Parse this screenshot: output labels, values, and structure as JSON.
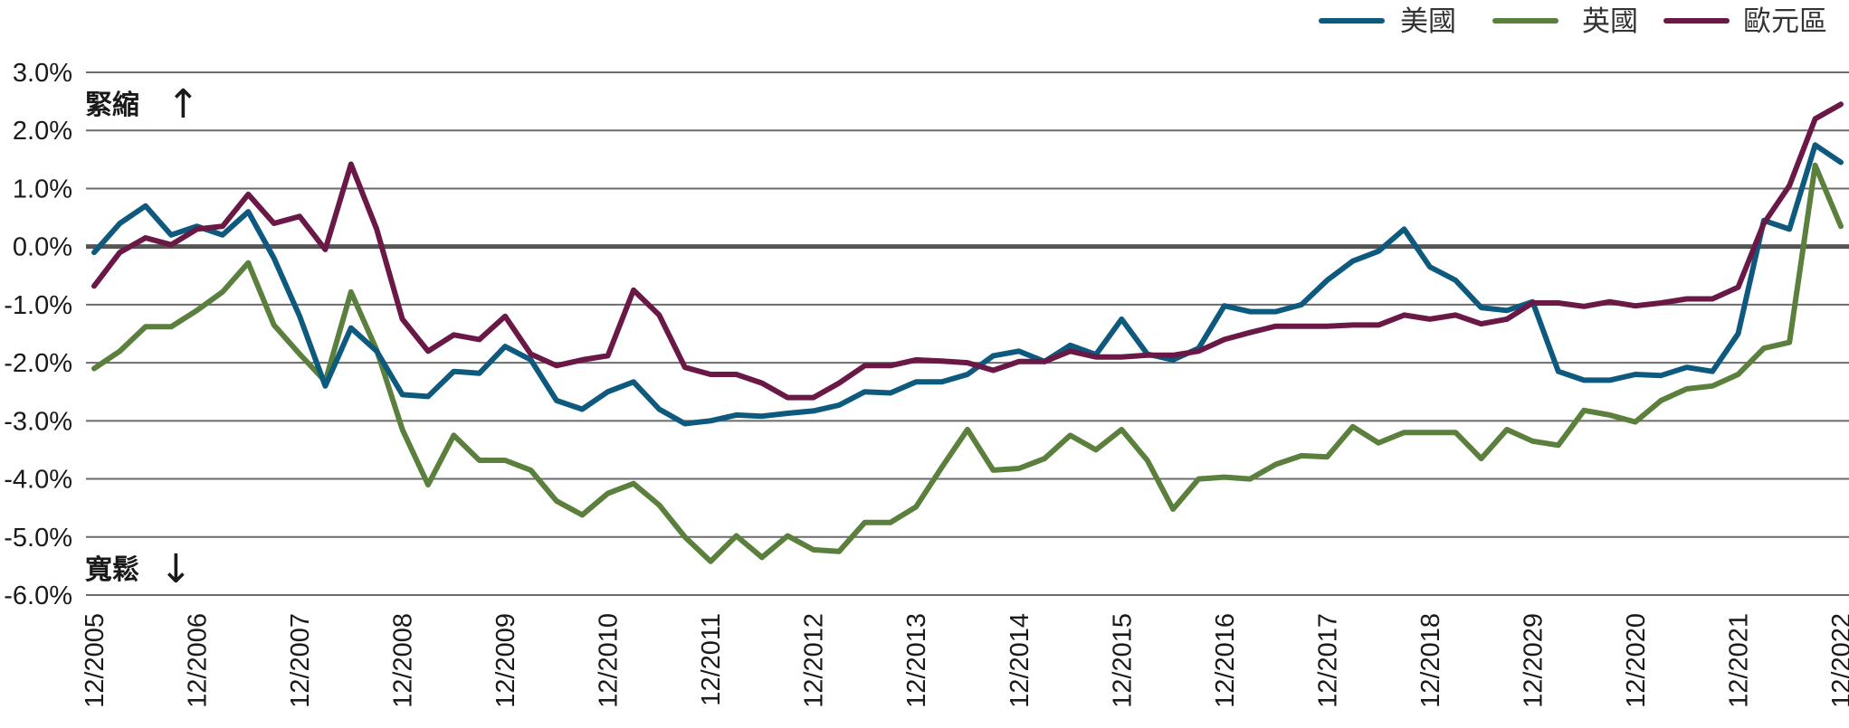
{
  "chart_data": {
    "type": "line",
    "title": "",
    "xlabel": "",
    "ylabel": "",
    "ylim": [
      -6.0,
      3.0
    ],
    "y_ticks": [
      "3.0%",
      "2.0%",
      "1.0%",
      "0.0%",
      "-1.0%",
      "-2.0%",
      "-3.0%",
      "-4.0%",
      "-5.0%",
      "-6.0%"
    ],
    "y_tick_values": [
      3,
      2,
      1,
      0,
      -1,
      -2,
      -3,
      -4,
      -5,
      -6
    ],
    "x_ticks": [
      "12/2005",
      "12/2006",
      "12/2007",
      "12/2008",
      "12/2009",
      "12/2010",
      "12/2011",
      "12/2012",
      "12/2013",
      "12/2014",
      "12/2015",
      "12/2016",
      "12/2017",
      "12/2018",
      "12/2029",
      "12/2020",
      "12/2021",
      "12/2022"
    ],
    "grid": true,
    "legend_position": "top-right",
    "annotations": {
      "tight": "緊縮",
      "tight_arrow": "↑",
      "loose": "寬鬆",
      "loose_arrow": "↓"
    },
    "series": [
      {
        "name": "美國",
        "color": "#0e5a7e",
        "values": [
          -0.1,
          0.4,
          0.7,
          0.2,
          0.35,
          0.2,
          0.6,
          -0.2,
          -1.2,
          -2.4,
          -1.4,
          -1.8,
          -2.55,
          -2.58,
          -2.15,
          -2.18,
          -1.72,
          -1.95,
          -2.65,
          -2.8,
          -2.5,
          -2.33,
          -2.8,
          -3.05,
          -3.0,
          -2.9,
          -2.92,
          -2.87,
          -2.83,
          -2.73,
          -2.5,
          -2.52,
          -2.33,
          -2.33,
          -2.2,
          -1.88,
          -1.8,
          -1.98,
          -1.7,
          -1.86,
          -1.25,
          -1.85,
          -1.95,
          -1.75,
          -1.02,
          -1.12,
          -1.12,
          -1.0,
          -0.58,
          -0.25,
          -0.08,
          0.3,
          -0.35,
          -0.58,
          -1.05,
          -1.1,
          -0.95,
          -2.15,
          -2.3,
          -2.3,
          -2.2,
          -2.22,
          -2.08,
          -2.15,
          -1.5,
          0.45,
          0.3,
          1.75,
          1.45
        ]
      },
      {
        "name": "英國",
        "color": "#5b7f3c",
        "values": [
          -2.1,
          -1.8,
          -1.38,
          -1.38,
          -1.1,
          -0.78,
          -0.28,
          -1.35,
          -1.85,
          -2.32,
          -0.78,
          -1.78,
          -3.15,
          -4.1,
          -3.25,
          -3.68,
          -3.68,
          -3.85,
          -4.38,
          -4.62,
          -4.25,
          -4.08,
          -4.45,
          -5.0,
          -5.42,
          -4.98,
          -5.35,
          -4.98,
          -5.22,
          -5.25,
          -4.75,
          -4.75,
          -4.48,
          -3.8,
          -3.15,
          -3.85,
          -3.82,
          -3.65,
          -3.25,
          -3.5,
          -3.15,
          -3.68,
          -4.52,
          -4.0,
          -3.97,
          -4.0,
          -3.75,
          -3.6,
          -3.62,
          -3.1,
          -3.38,
          -3.2,
          -3.2,
          -3.2,
          -3.65,
          -3.15,
          -3.35,
          -3.42,
          -2.82,
          -2.9,
          -3.02,
          -2.65,
          -2.45,
          -2.4,
          -2.2,
          -1.75,
          -1.65,
          1.4,
          0.35
        ]
      },
      {
        "name": "歐元區",
        "color": "#6a1846",
        "values": [
          -0.68,
          -0.1,
          0.15,
          0.03,
          0.3,
          0.35,
          0.9,
          0.4,
          0.52,
          -0.05,
          1.42,
          0.3,
          -1.25,
          -1.8,
          -1.52,
          -1.6,
          -1.2,
          -1.85,
          -2.05,
          -1.95,
          -1.88,
          -0.75,
          -1.18,
          -2.08,
          -2.2,
          -2.2,
          -2.35,
          -2.6,
          -2.6,
          -2.35,
          -2.05,
          -2.05,
          -1.95,
          -1.97,
          -2.0,
          -2.13,
          -1.98,
          -1.98,
          -1.8,
          -1.9,
          -1.9,
          -1.87,
          -1.87,
          -1.8,
          -1.6,
          -1.48,
          -1.37,
          -1.37,
          -1.37,
          -1.35,
          -1.35,
          -1.18,
          -1.25,
          -1.18,
          -1.33,
          -1.25,
          -0.97,
          -0.97,
          -1.03,
          -0.95,
          -1.02,
          -0.97,
          -0.9,
          -0.9,
          -0.7,
          0.4,
          1.05,
          2.2,
          2.45
        ]
      }
    ]
  }
}
